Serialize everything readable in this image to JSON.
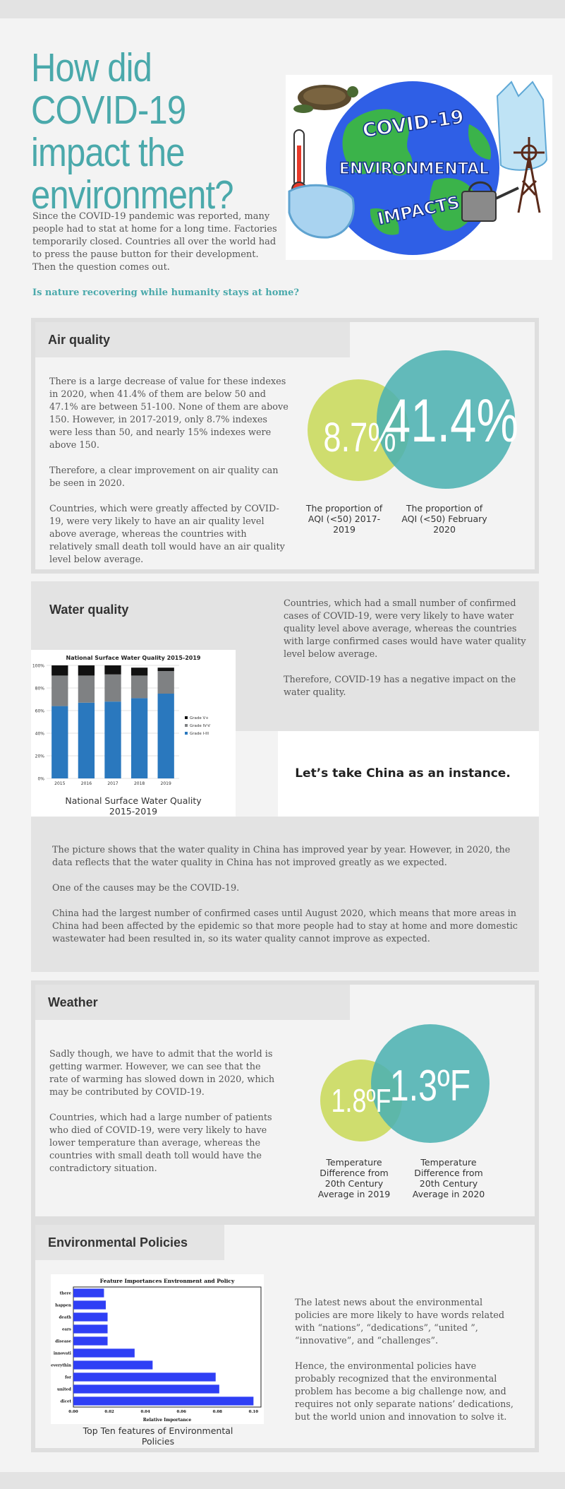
{
  "header": {
    "title": "How did COVID-19 impact the environment?",
    "intro": "Since the COVID-19 pandemic was reported, many people had to stat at home for a long time. Factories temporarily closed. Countries all over the world had to press the pause button for their development. Then the question comes out.",
    "question": "Is nature recovering while humanity stays at home?",
    "hero_line1": "COVID-19",
    "hero_line2": "ENVIRONMENTAL",
    "hero_line3": "IMPACTS"
  },
  "air_quality": {
    "heading": "Air quality",
    "p1": "There is a large decrease of value for these indexes in 2020, when 41.4% of them are below 50 and 47.1% are between 51-100. None of them are above 150. However, in 2017-2019, only 8.7% indexes were less than 50, and nearly 15% indexes were above 150.",
    "p2": "Therefore, a clear improvement on air quality can be seen in 2020.",
    "p3": "Countries, which were greatly affected by COVID-19, were very likely to have an air quality level above average, whereas the countries with relatively small death toll would have an air quality level below average.",
    "small_value": "8.7%",
    "big_value": "41.4%",
    "small_caption": "The proportion of AQI (<50) 2017-2019",
    "big_caption": "The proportion of AQI (<50) February 2020",
    "small_color": "#cfdd6e",
    "big_color": "#4db2b2"
  },
  "water_quality": {
    "heading": "Water quality",
    "right_p1": "Countries, which had a small number of confirmed cases of COVID-19, were very likely to have water quality level above average, whereas the countries with large confirmed cases would have water quality level below average.",
    "right_p2": "Therefore, COVID-19 has a negative impact on the water quality.",
    "instance": "Let’s take China as an instance.",
    "chart_caption": "National Surface Water Quality 2015-2019",
    "b1": "The picture shows that the water quality in China has improved year by year. However, in 2020, the data reflects that the water quality in China has not improved greatly as we expected.",
    "b2": "One of the causes may be the COVID-19.",
    "b3": "China had the largest number of confirmed cases until August 2020, which means that more areas in China had been affected by the epidemic so that more people had to stay at home and more domestic wastewater had been resulted in, so its water quality cannot improve as expected."
  },
  "weather": {
    "heading": "Weather",
    "p1": "Sadly though, we have to admit that the world is getting warmer. However, we can see that the rate of warming has slowed down in 2020, which may be contributed by COVID-19.",
    "p2": "Countries, which had a large number of patients who died of COVID-19, were very likely to have lower temperature than average, whereas the countries with small death toll would have the contradictory situation.",
    "small_value": "1.8ºF",
    "big_value": "1.3ºF",
    "small_caption": "Temperature Difference from 20th Century Average in 2019",
    "big_caption": "Temperature Difference from 20th Century Average in 2020"
  },
  "policies": {
    "heading": "Environmental Policies",
    "p1": "The latest news about the environmental policies are more likely to have words related with “nations”, “dedications”, “united ”, “innovative”, and “challenges”.",
    "p2": "Hence, the environmental policies have probably recognized that the environmental problem has become a big challenge now, and requires not only separate nations’ dedications, but the world union and innovation to solve it.",
    "chart_caption": "Top Ten features of Environmental Policies"
  },
  "chart_data": [
    {
      "type": "bar",
      "stacked": true,
      "title": "National Surface Water Quality 2015-2019",
      "categories": [
        "2015",
        "2016",
        "2017",
        "2018",
        "2019"
      ],
      "series": [
        {
          "name": "Grade I-III",
          "values": [
            64,
            67,
            68,
            71,
            75
          ],
          "color": "#2a78be"
        },
        {
          "name": "Grade IV-V",
          "values": [
            27,
            24,
            24,
            20,
            20
          ],
          "color": "#7f8183"
        },
        {
          "name": "Grade V+",
          "values": [
            9,
            9,
            8,
            7,
            3
          ],
          "color": "#111111"
        }
      ],
      "yticks": [
        "0%",
        "20%",
        "40%",
        "60%",
        "80%",
        "100%"
      ],
      "ylim": [
        0,
        100
      ],
      "legend": "right"
    },
    {
      "type": "bar",
      "orientation": "horizontal",
      "title": "Feature Importances Environment and Policy",
      "xlabel": "Relative Importance",
      "categories": [
        "dicet",
        "united",
        "for",
        "everythin",
        "innovati",
        "disease",
        "ears",
        "death",
        "happen",
        "there"
      ],
      "values": [
        0.1,
        0.081,
        0.079,
        0.044,
        0.034,
        0.019,
        0.019,
        0.019,
        0.018,
        0.017
      ],
      "xticks": [
        "0.00",
        "0.02",
        "0.04",
        "0.06",
        "0.08",
        "0.10"
      ],
      "xlim": [
        0,
        0.1
      ],
      "color": "#2f3ff5"
    }
  ]
}
